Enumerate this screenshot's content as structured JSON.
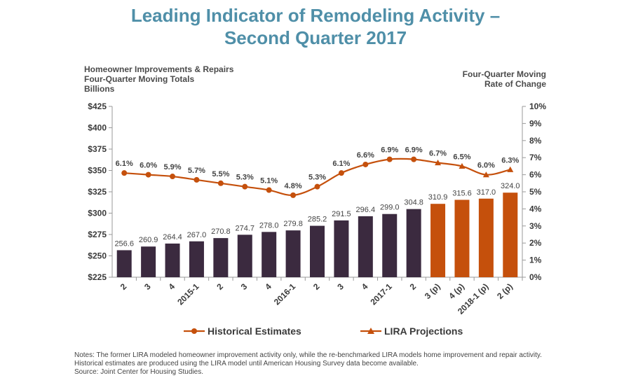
{
  "page": {
    "title_line1": "Leading Indicator of Remodeling Activity –",
    "title_line2": "Second Quarter 2017",
    "left_axis_title": [
      "Homeowner Improvements & Repairs",
      "Four-Quarter Moving Totals",
      "Billions"
    ],
    "right_axis_title": [
      "Four-Quarter Moving",
      "Rate of Change"
    ],
    "notes": [
      "Notes: The former LIRA modeled homeowner improvement activity only, while the re-benchmarked LIRA models home improvement and repair activity.",
      "Historical estimates are produced using the LIRA model until American Housing Survey data become available.",
      "Source: Joint Center for Housing Studies."
    ]
  },
  "chart_data": {
    "type": "bar+line",
    "categories": [
      "2",
      "3",
      "4",
      "2015-1",
      "2",
      "3",
      "4",
      "2016-1",
      "2",
      "3",
      "4",
      "2017-1",
      "2",
      "3 (p)",
      "4 (p)",
      "2018-1 (p)",
      "2 (p)"
    ],
    "bars": {
      "values": [
        256.6,
        260.9,
        264.4,
        267.0,
        270.8,
        274.7,
        278.0,
        279.8,
        285.2,
        291.5,
        296.4,
        299.0,
        304.8,
        310.9,
        315.6,
        317.0,
        324.0
      ],
      "value_labels": [
        "256.6",
        "260.9",
        "264.4",
        "267.0",
        "270.8",
        "274.7",
        "278.0",
        "279.8",
        "285.2",
        "291.5",
        "296.4",
        "299.0",
        "304.8",
        "310.9",
        "315.6",
        "317.0",
        "324.0"
      ],
      "projected_from_index": 13,
      "color_historical": "#3b2a3f",
      "color_projected": "#c5500c"
    },
    "line": {
      "values": [
        6.1,
        6.0,
        5.9,
        5.7,
        5.5,
        5.3,
        5.1,
        4.8,
        5.3,
        6.1,
        6.6,
        6.9,
        6.9,
        6.7,
        6.5,
        6.0,
        6.3
      ],
      "value_labels": [
        "6.1%",
        "6.0%",
        "5.9%",
        "5.7%",
        "5.5%",
        "5.3%",
        "5.1%",
        "4.8%",
        "5.3%",
        "6.1%",
        "6.6%",
        "6.9%",
        "6.9%",
        "6.7%",
        "6.5%",
        "6.0%",
        "6.3%"
      ],
      "color": "#c5500c"
    },
    "left_axis": {
      "ylim": [
        225,
        425
      ],
      "ticks": [
        225,
        250,
        275,
        300,
        325,
        350,
        375,
        400,
        425
      ],
      "tick_labels": [
        "$225",
        "$250",
        "$275",
        "$300",
        "$325",
        "$350",
        "$375",
        "$400",
        "$425"
      ]
    },
    "right_axis": {
      "ylim": [
        0,
        10
      ],
      "ticks": [
        0,
        1,
        2,
        3,
        4,
        5,
        6,
        7,
        8,
        9,
        10
      ],
      "tick_labels": [
        "0%",
        "1%",
        "2%",
        "3%",
        "4%",
        "5%",
        "6%",
        "7%",
        "8%",
        "9%",
        "10%"
      ]
    },
    "legend": [
      {
        "label": "Historical Estimates",
        "marker": "circle"
      },
      {
        "label": "LIRA Projections",
        "marker": "triangle"
      }
    ],
    "legend_position": "bottom"
  }
}
